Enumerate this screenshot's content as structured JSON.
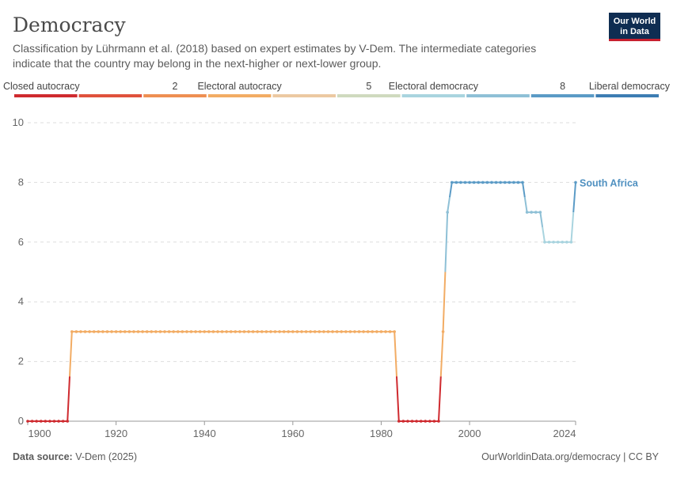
{
  "chart_data": {
    "type": "line",
    "title": "Democracy",
    "subtitle": [
      "Classification by Lührmann et al. (2018) based on expert estimates by V-Dem. The intermediate categories",
      "indicate that the country may belong in the next-higher or next-lower group."
    ],
    "logo": [
      "Our World",
      "in Data"
    ],
    "source_label": "Data source:",
    "source": "V-Dem (2025)",
    "footer_right": "OurWorldinData.org/democracy | CC BY",
    "color_scale": [
      {
        "color": "#cf2a2f",
        "label": "Closed autocracy"
      },
      {
        "color": "#e0523c",
        "label": null
      },
      {
        "color": "#ee8f52",
        "label": "2"
      },
      {
        "color": "#f2ac64",
        "label": "Electoral autocracy"
      },
      {
        "color": "#ecc9a2",
        "label": null
      },
      {
        "color": "#cfdabf",
        "label": "5"
      },
      {
        "color": "#a9d4df",
        "label": "Electoral democracy"
      },
      {
        "color": "#8ec0d6",
        "label": null
      },
      {
        "color": "#5b9bc6",
        "label": "8"
      },
      {
        "color": "#3d7db3",
        "label": "Liberal democracy"
      }
    ],
    "xlim": [
      1900,
      2024
    ],
    "xticks": [
      1900,
      1920,
      1940,
      1960,
      1980,
      2000,
      2024
    ],
    "ylim": [
      0,
      10
    ],
    "yticks": [
      0,
      2,
      4,
      6,
      8,
      10
    ],
    "grid": true,
    "series": [
      {
        "name": "South Africa",
        "color": "#4f90c0",
        "x": [
          1900,
          1901,
          1902,
          1903,
          1904,
          1905,
          1906,
          1907,
          1908,
          1909,
          1910,
          1911,
          1912,
          1913,
          1914,
          1915,
          1916,
          1917,
          1918,
          1919,
          1920,
          1921,
          1922,
          1923,
          1924,
          1925,
          1926,
          1927,
          1928,
          1929,
          1930,
          1931,
          1932,
          1933,
          1934,
          1935,
          1936,
          1937,
          1938,
          1939,
          1940,
          1941,
          1942,
          1943,
          1944,
          1945,
          1946,
          1947,
          1948,
          1949,
          1950,
          1951,
          1952,
          1953,
          1954,
          1955,
          1956,
          1957,
          1958,
          1959,
          1960,
          1961,
          1962,
          1963,
          1964,
          1965,
          1966,
          1967,
          1968,
          1969,
          1970,
          1971,
          1972,
          1973,
          1974,
          1975,
          1976,
          1977,
          1978,
          1979,
          1980,
          1981,
          1982,
          1983,
          1984,
          1985,
          1986,
          1987,
          1988,
          1989,
          1990,
          1991,
          1992,
          1993,
          1994,
          1995,
          1996,
          1997,
          1998,
          1999,
          2000,
          2001,
          2002,
          2003,
          2004,
          2005,
          2006,
          2007,
          2008,
          2009,
          2010,
          2011,
          2012,
          2013,
          2014,
          2015,
          2016,
          2017,
          2018,
          2019,
          2020,
          2021,
          2022,
          2023,
          2024
        ],
        "values": [
          0,
          0,
          0,
          0,
          0,
          0,
          0,
          0,
          0,
          0,
          3,
          3,
          3,
          3,
          3,
          3,
          3,
          3,
          3,
          3,
          3,
          3,
          3,
          3,
          3,
          3,
          3,
          3,
          3,
          3,
          3,
          3,
          3,
          3,
          3,
          3,
          3,
          3,
          3,
          3,
          3,
          3,
          3,
          3,
          3,
          3,
          3,
          3,
          3,
          3,
          3,
          3,
          3,
          3,
          3,
          3,
          3,
          3,
          3,
          3,
          3,
          3,
          3,
          3,
          3,
          3,
          3,
          3,
          3,
          3,
          3,
          3,
          3,
          3,
          3,
          3,
          3,
          3,
          3,
          3,
          3,
          3,
          3,
          3,
          0,
          0,
          0,
          0,
          0,
          0,
          0,
          0,
          0,
          0,
          3,
          7,
          8,
          8,
          8,
          8,
          8,
          8,
          8,
          8,
          8,
          8,
          8,
          8,
          8,
          8,
          8,
          8,
          8,
          7,
          7,
          7,
          7,
          6,
          6,
          6,
          6,
          6,
          6,
          6,
          8
        ]
      }
    ]
  }
}
